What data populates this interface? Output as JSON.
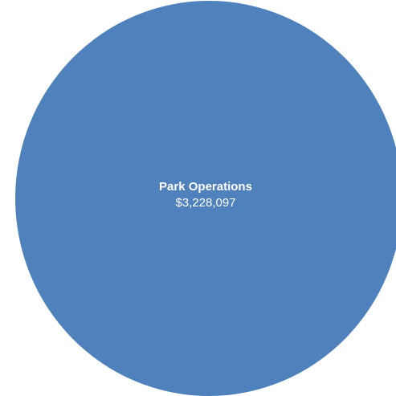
{
  "chart_data": {
    "type": "pie",
    "categories": [
      "Park Operations"
    ],
    "values": [
      3228097
    ],
    "value_labels": [
      "$3,228,097"
    ],
    "colors": [
      "#4f81bd"
    ]
  }
}
